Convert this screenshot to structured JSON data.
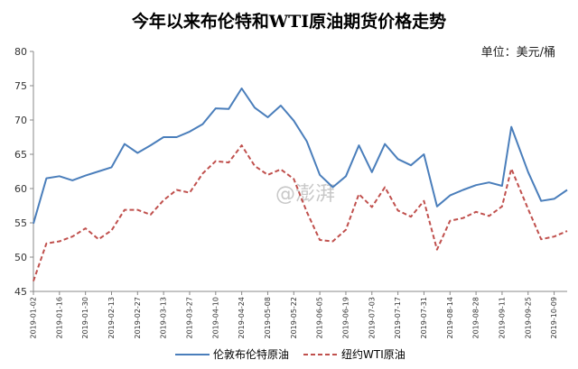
{
  "watermark": "@澎湃",
  "chart_data": {
    "type": "line",
    "title": "今年以来布伦特和WTI原油期货价格走势",
    "unit_label": "单位：美元/桶",
    "xlabel": "",
    "ylabel": "",
    "ylim": [
      45,
      80
    ],
    "yticks": [
      45,
      50,
      55,
      60,
      65,
      70,
      75,
      80
    ],
    "grid": false,
    "legend_position": "bottom",
    "x_tick_labels": [
      "2019-01-02",
      "2019-01-16",
      "2019-01-30",
      "2019-02-13",
      "2019-02-27",
      "2019-03-13",
      "2019-03-27",
      "2019-04-10",
      "2019-04-24",
      "2019-05-08",
      "2019-05-22",
      "2019-06-05",
      "2019-06-19",
      "2019-07-03",
      "2019-07-17",
      "2019-07-31",
      "2019-08-14",
      "2019-08-28",
      "2019-09-11",
      "2019-09-25",
      "2019-10-09"
    ],
    "x": [
      "2019-01-02",
      "2019-01-09",
      "2019-01-16",
      "2019-01-23",
      "2019-01-30",
      "2019-02-06",
      "2019-02-13",
      "2019-02-20",
      "2019-02-27",
      "2019-03-06",
      "2019-03-13",
      "2019-03-20",
      "2019-03-27",
      "2019-04-03",
      "2019-04-10",
      "2019-04-17",
      "2019-04-24",
      "2019-05-01",
      "2019-05-08",
      "2019-05-15",
      "2019-05-22",
      "2019-05-29",
      "2019-06-05",
      "2019-06-12",
      "2019-06-19",
      "2019-06-26",
      "2019-07-03",
      "2019-07-10",
      "2019-07-17",
      "2019-07-24",
      "2019-07-31",
      "2019-08-07",
      "2019-08-14",
      "2019-08-21",
      "2019-08-28",
      "2019-09-04",
      "2019-09-11",
      "2019-09-16",
      "2019-09-25",
      "2019-10-02",
      "2019-10-09",
      "2019-10-16"
    ],
    "series": [
      {
        "name": "伦敦布伦特原油",
        "color": "#4a7ebb",
        "dash": false,
        "values": [
          54.9,
          61.5,
          61.8,
          61.2,
          61.9,
          62.5,
          63.1,
          66.5,
          65.2,
          66.3,
          67.5,
          67.5,
          68.3,
          69.4,
          71.7,
          71.6,
          74.6,
          71.8,
          70.4,
          72.1,
          69.9,
          66.9,
          62.0,
          60.2,
          61.8,
          66.3,
          62.4,
          66.5,
          64.3,
          63.4,
          65.0,
          57.4,
          59.0,
          59.8,
          60.5,
          60.9,
          60.4,
          69.0,
          62.4,
          58.2,
          58.5,
          59.8
        ]
      },
      {
        "name": "纽约WTI原油",
        "color": "#c0504d",
        "dash": true,
        "values": [
          46.5,
          52.0,
          52.3,
          53.0,
          54.2,
          52.6,
          53.9,
          56.9,
          56.9,
          56.2,
          58.3,
          59.8,
          59.4,
          62.2,
          64.0,
          63.8,
          66.3,
          63.3,
          62.0,
          62.8,
          61.4,
          56.6,
          52.5,
          52.3,
          54.0,
          59.2,
          57.3,
          60.2,
          56.8,
          55.9,
          58.2,
          51.1,
          55.3,
          55.7,
          56.6,
          56.0,
          57.4,
          62.9,
          57.0,
          52.6,
          53.0,
          53.8
        ]
      }
    ]
  }
}
